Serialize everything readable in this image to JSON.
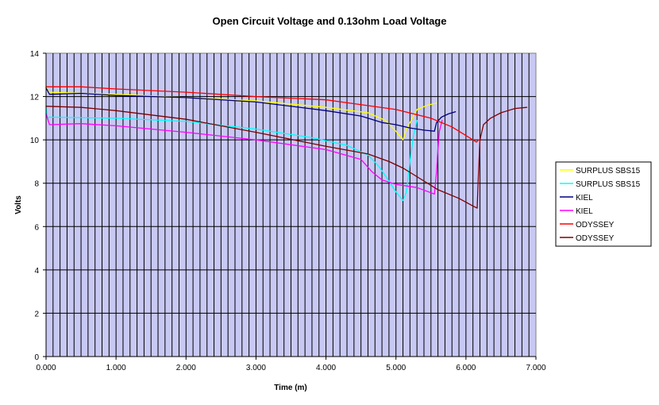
{
  "chart_data": {
    "type": "line",
    "title": "Open Circuit Voltage and 0.13ohm Load Voltage",
    "xlabel": "Time (m)",
    "ylabel": "Volts",
    "xlim": [
      0,
      7
    ],
    "ylim": [
      0,
      14
    ],
    "x_ticks": [
      "0.000",
      "1.000",
      "2.000",
      "3.000",
      "4.000",
      "5.000",
      "6.000",
      "7.000"
    ],
    "y_ticks": [
      "0",
      "2",
      "4",
      "6",
      "8",
      "10",
      "12",
      "14"
    ],
    "grid": true,
    "legend_position": "right",
    "plot_background": "#c8c8f4",
    "series": [
      {
        "name": "SURPLUS SBS15",
        "color": "#ffff00",
        "points": [
          [
            0.0,
            12.5
          ],
          [
            0.02,
            12.3
          ],
          [
            0.05,
            12.2
          ],
          [
            1.0,
            12.1
          ],
          [
            2.0,
            11.95
          ],
          [
            3.0,
            11.8
          ],
          [
            4.0,
            11.5
          ],
          [
            4.6,
            11.25
          ],
          [
            4.85,
            10.9
          ],
          [
            5.0,
            10.4
          ],
          [
            5.1,
            10.0
          ],
          [
            5.15,
            10.5
          ],
          [
            5.3,
            11.4
          ],
          [
            5.45,
            11.6
          ],
          [
            5.58,
            11.7
          ]
        ]
      },
      {
        "name": "SURPLUS SBS15",
        "color": "#00ffff",
        "points": [
          [
            0.0,
            11.5
          ],
          [
            0.02,
            11.0
          ],
          [
            0.05,
            11.05
          ],
          [
            1.0,
            11.0
          ],
          [
            2.0,
            10.85
          ],
          [
            3.0,
            10.5
          ],
          [
            3.8,
            10.1
          ],
          [
            4.3,
            9.75
          ],
          [
            4.6,
            9.3
          ],
          [
            4.75,
            8.8
          ],
          [
            4.9,
            8.1
          ],
          [
            5.0,
            7.6
          ],
          [
            5.1,
            7.2
          ],
          [
            5.15,
            7.6
          ],
          [
            5.2,
            9.0
          ],
          [
            5.25,
            10.2
          ],
          [
            5.3,
            10.9
          ]
        ]
      },
      {
        "name": "KIEL",
        "color": "#000080",
        "points": [
          [
            0.0,
            12.4
          ],
          [
            0.05,
            12.1
          ],
          [
            0.5,
            12.15
          ],
          [
            1.0,
            12.05
          ],
          [
            2.0,
            11.95
          ],
          [
            3.0,
            11.75
          ],
          [
            4.0,
            11.35
          ],
          [
            4.5,
            11.1
          ],
          [
            4.8,
            10.8
          ],
          [
            5.0,
            10.7
          ],
          [
            5.2,
            10.55
          ],
          [
            5.4,
            10.45
          ],
          [
            5.55,
            10.4
          ],
          [
            5.58,
            10.8
          ],
          [
            5.65,
            11.05
          ],
          [
            5.75,
            11.2
          ],
          [
            5.85,
            11.3
          ]
        ]
      },
      {
        "name": "KIEL",
        "color": "#ff00ff",
        "points": [
          [
            0.0,
            11.2
          ],
          [
            0.05,
            10.7
          ],
          [
            0.5,
            10.75
          ],
          [
            1.0,
            10.65
          ],
          [
            2.0,
            10.35
          ],
          [
            3.0,
            10.0
          ],
          [
            4.0,
            9.55
          ],
          [
            4.5,
            9.1
          ],
          [
            4.65,
            8.55
          ],
          [
            4.8,
            8.15
          ],
          [
            5.0,
            7.95
          ],
          [
            5.3,
            7.8
          ],
          [
            5.55,
            7.5
          ],
          [
            5.58,
            8.5
          ],
          [
            5.6,
            9.6
          ],
          [
            5.62,
            10.4
          ],
          [
            5.66,
            10.9
          ]
        ]
      },
      {
        "name": "ODYSSEY",
        "color": "#ff0000",
        "points": [
          [
            0.0,
            12.45
          ],
          [
            0.5,
            12.45
          ],
          [
            1.0,
            12.35
          ],
          [
            2.0,
            12.2
          ],
          [
            3.0,
            12.0
          ],
          [
            4.0,
            11.85
          ],
          [
            5.0,
            11.4
          ],
          [
            5.5,
            11.0
          ],
          [
            5.8,
            10.6
          ],
          [
            6.0,
            10.2
          ],
          [
            6.15,
            9.9
          ],
          [
            6.18,
            10.0
          ]
        ]
      },
      {
        "name": "ODYSSEY",
        "color": "#800000",
        "points": [
          [
            0.0,
            11.55
          ],
          [
            0.5,
            11.5
          ],
          [
            1.0,
            11.35
          ],
          [
            2.0,
            10.95
          ],
          [
            3.0,
            10.35
          ],
          [
            4.0,
            9.7
          ],
          [
            4.6,
            9.35
          ],
          [
            4.9,
            9.0
          ],
          [
            5.1,
            8.7
          ],
          [
            5.3,
            8.3
          ],
          [
            5.6,
            7.7
          ],
          [
            5.9,
            7.3
          ],
          [
            6.1,
            6.95
          ],
          [
            6.16,
            6.85
          ],
          [
            6.18,
            8.5
          ],
          [
            6.2,
            10.0
          ],
          [
            6.25,
            10.7
          ],
          [
            6.35,
            11.0
          ],
          [
            6.5,
            11.25
          ],
          [
            6.7,
            11.45
          ],
          [
            6.87,
            11.5
          ]
        ]
      }
    ]
  }
}
